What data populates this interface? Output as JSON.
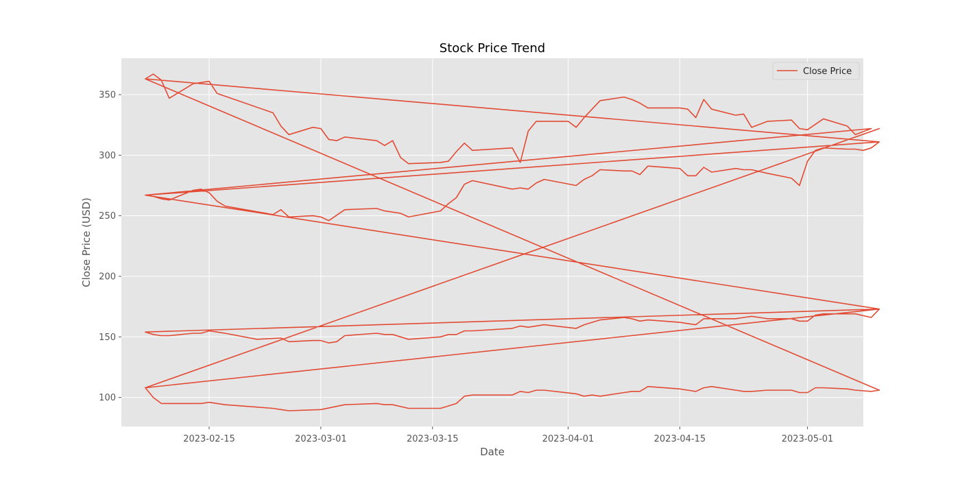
{
  "chart_data": {
    "type": "line",
    "title": "Stock Price Trend",
    "xlabel": "Date",
    "ylabel": "Close Price (USD)",
    "xlim": [
      "2023-02-04",
      "2023-05-08"
    ],
    "ylim": [
      76,
      380
    ],
    "x_ticks": [
      "2023-02-15",
      "2023-03-01",
      "2023-03-15",
      "2023-04-01",
      "2023-04-15",
      "2023-05-01"
    ],
    "y_ticks": [
      100,
      150,
      200,
      250,
      300,
      350
    ],
    "grid": true,
    "legend": {
      "position": "top-right",
      "entries": [
        "Close Price"
      ]
    },
    "colors": {
      "line": "#E24A33",
      "plot_bg": "#E5E5E5",
      "grid": "#FFFFFF",
      "tick_text": "#555555",
      "title_text": "#000000"
    },
    "series": [
      {
        "name": "Close Price",
        "points": [
          [
            "2023-02-07",
            363
          ],
          [
            "2023-02-08",
            367
          ],
          [
            "2023-02-09",
            362
          ],
          [
            "2023-02-10",
            347
          ],
          [
            "2023-02-13",
            359
          ],
          [
            "2023-02-14",
            360
          ],
          [
            "2023-02-15",
            361
          ],
          [
            "2023-02-16",
            351
          ],
          [
            "2023-02-23",
            335
          ],
          [
            "2023-02-24",
            324
          ],
          [
            "2023-02-25",
            317
          ],
          [
            "2023-02-28",
            323
          ],
          [
            "2023-03-01",
            322
          ],
          [
            "2023-03-02",
            313
          ],
          [
            "2023-03-03",
            312
          ],
          [
            "2023-03-04",
            315
          ],
          [
            "2023-03-08",
            312
          ],
          [
            "2023-03-09",
            308
          ],
          [
            "2023-03-10",
            312
          ],
          [
            "2023-03-11",
            298
          ],
          [
            "2023-03-12",
            293
          ],
          [
            "2023-03-16",
            294
          ],
          [
            "2023-03-17",
            295
          ],
          [
            "2023-03-18",
            303
          ],
          [
            "2023-03-19",
            310
          ],
          [
            "2023-03-20",
            304
          ],
          [
            "2023-03-25",
            306
          ],
          [
            "2023-03-26",
            294
          ],
          [
            "2023-03-27",
            320
          ],
          [
            "2023-03-28",
            328
          ],
          [
            "2023-04-01",
            328
          ],
          [
            "2023-04-02",
            323
          ],
          [
            "2023-04-03",
            331
          ],
          [
            "2023-04-05",
            345
          ],
          [
            "2023-04-08",
            348
          ],
          [
            "2023-04-09",
            346
          ],
          [
            "2023-04-10",
            343
          ],
          [
            "2023-04-11",
            339
          ],
          [
            "2023-04-15",
            339
          ],
          [
            "2023-04-16",
            338
          ],
          [
            "2023-04-17",
            331
          ],
          [
            "2023-04-18",
            346
          ],
          [
            "2023-04-19",
            338
          ],
          [
            "2023-04-22",
            333
          ],
          [
            "2023-04-23",
            334
          ],
          [
            "2023-04-24",
            323
          ],
          [
            "2023-04-26",
            328
          ],
          [
            "2023-04-29",
            329
          ],
          [
            "2023-04-30",
            322
          ],
          [
            "2023-05-01",
            321
          ],
          [
            "2023-05-03",
            330
          ],
          [
            "2023-05-06",
            324
          ],
          [
            "2023-05-07",
            317
          ],
          [
            "2023-05-09",
            322
          ],
          [
            "2023-02-07",
            267
          ],
          [
            "2023-02-08",
            266
          ],
          [
            "2023-02-09",
            264
          ],
          [
            "2023-02-10",
            263
          ],
          [
            "2023-02-13",
            271
          ],
          [
            "2023-02-14",
            272
          ],
          [
            "2023-02-15",
            269
          ],
          [
            "2023-02-16",
            262
          ],
          [
            "2023-02-17",
            258
          ],
          [
            "2023-02-23",
            251
          ],
          [
            "2023-02-24",
            255
          ],
          [
            "2023-02-25",
            249
          ],
          [
            "2023-02-28",
            250
          ],
          [
            "2023-03-01",
            249
          ],
          [
            "2023-03-02",
            246
          ],
          [
            "2023-03-04",
            255
          ],
          [
            "2023-03-08",
            256
          ],
          [
            "2023-03-09",
            254
          ],
          [
            "2023-03-10",
            253
          ],
          [
            "2023-03-11",
            252
          ],
          [
            "2023-03-12",
            249
          ],
          [
            "2023-03-16",
            254
          ],
          [
            "2023-03-17",
            260
          ],
          [
            "2023-03-18",
            265
          ],
          [
            "2023-03-19",
            276
          ],
          [
            "2023-03-20",
            279
          ],
          [
            "2023-03-25",
            272
          ],
          [
            "2023-03-26",
            273
          ],
          [
            "2023-03-27",
            272
          ],
          [
            "2023-03-28",
            277
          ],
          [
            "2023-03-29",
            280
          ],
          [
            "2023-04-02",
            275
          ],
          [
            "2023-04-03",
            280
          ],
          [
            "2023-04-04",
            283
          ],
          [
            "2023-04-05",
            288
          ],
          [
            "2023-04-08",
            287
          ],
          [
            "2023-04-09",
            287
          ],
          [
            "2023-04-10",
            284
          ],
          [
            "2023-04-11",
            291
          ],
          [
            "2023-04-15",
            289
          ],
          [
            "2023-04-16",
            283
          ],
          [
            "2023-04-17",
            283
          ],
          [
            "2023-04-18",
            290
          ],
          [
            "2023-04-19",
            286
          ],
          [
            "2023-04-22",
            289
          ],
          [
            "2023-04-23",
            288
          ],
          [
            "2023-04-24",
            288
          ],
          [
            "2023-04-26",
            285
          ],
          [
            "2023-04-29",
            281
          ],
          [
            "2023-04-30",
            275
          ],
          [
            "2023-05-01",
            295
          ],
          [
            "2023-05-02",
            304
          ],
          [
            "2023-05-03",
            306
          ],
          [
            "2023-05-06",
            305
          ],
          [
            "2023-05-07",
            305
          ],
          [
            "2023-05-08",
            304
          ],
          [
            "2023-05-09",
            306
          ],
          [
            "2023-05-10",
            311
          ],
          [
            "2023-02-07",
            267
          ],
          [
            "2023-05-10",
            173
          ],
          [
            "2023-02-07",
            154
          ],
          [
            "2023-02-08",
            152
          ],
          [
            "2023-02-09",
            151
          ],
          [
            "2023-02-10",
            151
          ],
          [
            "2023-02-13",
            153
          ],
          [
            "2023-02-14",
            153
          ],
          [
            "2023-02-15",
            155
          ],
          [
            "2023-02-16",
            154
          ],
          [
            "2023-02-17",
            153
          ],
          [
            "2023-02-21",
            148
          ],
          [
            "2023-02-24",
            149
          ],
          [
            "2023-02-25",
            146
          ],
          [
            "2023-02-28",
            147
          ],
          [
            "2023-03-01",
            147
          ],
          [
            "2023-03-02",
            145
          ],
          [
            "2023-03-03",
            146
          ],
          [
            "2023-03-04",
            151
          ],
          [
            "2023-03-08",
            153
          ],
          [
            "2023-03-09",
            152
          ],
          [
            "2023-03-10",
            152
          ],
          [
            "2023-03-12",
            148
          ],
          [
            "2023-03-16",
            150
          ],
          [
            "2023-03-17",
            152
          ],
          [
            "2023-03-18",
            152
          ],
          [
            "2023-03-19",
            155
          ],
          [
            "2023-03-20",
            155
          ],
          [
            "2023-03-25",
            157
          ],
          [
            "2023-03-26",
            159
          ],
          [
            "2023-03-27",
            158
          ],
          [
            "2023-03-29",
            160
          ],
          [
            "2023-04-02",
            157
          ],
          [
            "2023-04-03",
            160
          ],
          [
            "2023-04-04",
            162
          ],
          [
            "2023-04-05",
            164
          ],
          [
            "2023-04-08",
            166
          ],
          [
            "2023-04-09",
            165
          ],
          [
            "2023-04-10",
            163
          ],
          [
            "2023-04-11",
            164
          ],
          [
            "2023-04-15",
            162
          ],
          [
            "2023-04-16",
            161
          ],
          [
            "2023-04-17",
            160
          ],
          [
            "2023-04-18",
            165
          ],
          [
            "2023-04-19",
            165
          ],
          [
            "2023-04-22",
            165
          ],
          [
            "2023-04-23",
            166
          ],
          [
            "2023-04-24",
            167
          ],
          [
            "2023-04-25",
            166
          ],
          [
            "2023-04-26",
            165
          ],
          [
            "2023-04-29",
            165
          ],
          [
            "2023-04-30",
            163
          ],
          [
            "2023-05-01",
            163
          ],
          [
            "2023-05-02",
            168
          ],
          [
            "2023-05-03",
            169
          ],
          [
            "2023-05-06",
            169
          ],
          [
            "2023-05-07",
            169
          ],
          [
            "2023-05-09",
            166
          ],
          [
            "2023-05-10",
            173
          ],
          [
            "2023-02-07",
            108
          ],
          [
            "2023-05-10",
            322
          ],
          [
            "2023-02-07",
            108
          ],
          [
            "2023-02-08",
            100
          ],
          [
            "2023-02-09",
            95
          ],
          [
            "2023-02-10",
            95
          ],
          [
            "2023-02-14",
            95
          ],
          [
            "2023-02-15",
            96
          ],
          [
            "2023-02-17",
            94
          ],
          [
            "2023-02-21",
            92
          ],
          [
            "2023-02-23",
            91
          ],
          [
            "2023-02-24",
            90
          ],
          [
            "2023-02-25",
            89
          ],
          [
            "2023-03-01",
            90
          ],
          [
            "2023-03-04",
            94
          ],
          [
            "2023-03-08",
            95
          ],
          [
            "2023-03-09",
            94
          ],
          [
            "2023-03-10",
            94
          ],
          [
            "2023-03-12",
            91
          ],
          [
            "2023-03-16",
            91
          ],
          [
            "2023-03-17",
            93
          ],
          [
            "2023-03-18",
            95
          ],
          [
            "2023-03-19",
            101
          ],
          [
            "2023-03-20",
            102
          ],
          [
            "2023-03-25",
            102
          ],
          [
            "2023-03-26",
            105
          ],
          [
            "2023-03-27",
            104
          ],
          [
            "2023-03-28",
            106
          ],
          [
            "2023-03-29",
            106
          ],
          [
            "2023-04-02",
            103
          ],
          [
            "2023-04-03",
            101
          ],
          [
            "2023-04-04",
            102
          ],
          [
            "2023-04-05",
            101
          ],
          [
            "2023-04-08",
            104
          ],
          [
            "2023-04-09",
            105
          ],
          [
            "2023-04-10",
            105
          ],
          [
            "2023-04-11",
            109
          ],
          [
            "2023-04-15",
            107
          ],
          [
            "2023-04-16",
            106
          ],
          [
            "2023-04-17",
            105
          ],
          [
            "2023-04-18",
            108
          ],
          [
            "2023-04-19",
            109
          ],
          [
            "2023-04-22",
            106
          ],
          [
            "2023-04-23",
            105
          ],
          [
            "2023-04-24",
            105
          ],
          [
            "2023-04-26",
            106
          ],
          [
            "2023-04-29",
            106
          ],
          [
            "2023-04-30",
            104
          ],
          [
            "2023-05-01",
            104
          ],
          [
            "2023-05-02",
            108
          ],
          [
            "2023-05-03",
            108
          ],
          [
            "2023-05-06",
            107
          ],
          [
            "2023-05-07",
            106
          ],
          [
            "2023-05-09",
            105
          ],
          [
            "2023-05-10",
            106
          ],
          [
            "2023-02-07",
            363
          ],
          [
            "2023-05-10",
            311
          ]
        ]
      }
    ]
  }
}
